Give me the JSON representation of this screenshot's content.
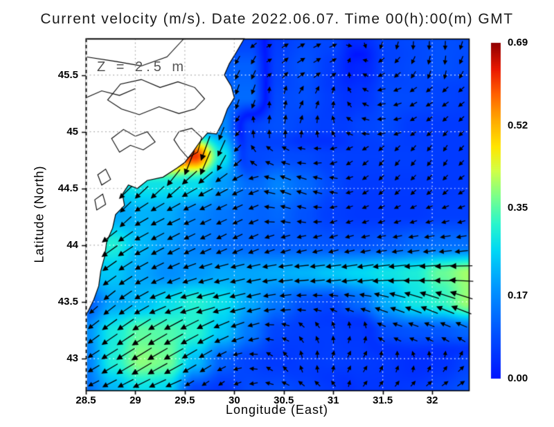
{
  "figure": {
    "title": "Current velocity (m/s). Date 2022.06.07. Time 00(h):00(m) GMT",
    "background": "#ffffff"
  },
  "chart_data": {
    "type": "heatmap",
    "overlay": "vector-field",
    "title": "Current velocity (m/s). Date 2022.06.07. Time 00(h):00(m) GMT",
    "depth_annotation": "Z  =  2.5  m",
    "xlabel": "Longitude (East)",
    "ylabel": "Latitude (North)",
    "units": "m/s",
    "xlim": [
      28.5,
      32.37
    ],
    "ylim": [
      42.72,
      45.82
    ],
    "xticks": [
      28.5,
      29,
      29.5,
      30,
      30.5,
      31,
      31.5,
      32
    ],
    "xtick_labels": [
      "28.5",
      "29",
      "29.5",
      "30",
      "30.5",
      "31",
      "31.5",
      "32"
    ],
    "yticks": [
      45.5,
      45,
      44.5,
      44,
      43.5,
      43
    ],
    "ytick_labels": [
      "45.5",
      "45",
      "44.5",
      "44",
      "43.5",
      "43"
    ],
    "grid": "dotted",
    "colors": {
      "land": "#ffffff",
      "coastline": "#000000",
      "arrows": "#000000",
      "grid_sea": "rgba(255,255,255,0.9)",
      "grid_land": "#a8a8a8",
      "frame": "#000000"
    },
    "colorbar": {
      "min": 0.0,
      "max": 0.69,
      "tick_values": [
        0.69,
        0.52,
        0.35,
        0.17,
        0.0
      ],
      "tick_labels": [
        "0.69",
        "0.52",
        "0.35",
        "0.17",
        "0.00"
      ],
      "stops": [
        [
          0.0,
          0,
          20,
          255
        ],
        [
          0.13,
          0,
          80,
          255
        ],
        [
          0.27,
          0,
          150,
          255
        ],
        [
          0.38,
          0,
          215,
          245
        ],
        [
          0.46,
          40,
          245,
          205
        ],
        [
          0.54,
          120,
          255,
          140
        ],
        [
          0.62,
          210,
          255,
          70
        ],
        [
          0.69,
          255,
          230,
          0
        ],
        [
          0.77,
          255,
          170,
          0
        ],
        [
          0.85,
          255,
          95,
          0
        ],
        [
          0.92,
          235,
          25,
          0
        ],
        [
          1.0,
          145,
          0,
          0
        ]
      ]
    },
    "field": {
      "units": "m/s",
      "lons": [
        28.5,
        28.78,
        29.05,
        29.33,
        29.6,
        29.88,
        30.15,
        30.43,
        30.7,
        30.98,
        31.25,
        31.53,
        31.8,
        32.08,
        32.37
      ],
      "lats": [
        45.82,
        45.56,
        45.3,
        45.04,
        44.79,
        44.53,
        44.27,
        44.01,
        43.75,
        43.49,
        43.24,
        42.98,
        42.72
      ],
      "uv": [
        [
          null,
          null,
          null,
          null,
          null,
          null,
          [
            -0.06,
            -0.04
          ],
          [
            0.05,
            0.03
          ],
          [
            0.07,
            0.04
          ],
          [
            0.07,
            0.03
          ],
          [
            0.02,
            -0.03
          ],
          [
            -0.02,
            -0.07
          ],
          [
            0.0,
            -0.08
          ],
          [
            0.0,
            -0.09
          ],
          [
            -0.03,
            -0.08
          ]
        ],
        [
          null,
          null,
          null,
          null,
          null,
          null,
          [
            -0.05,
            -0.1
          ],
          [
            0.05,
            0.05
          ],
          [
            0.08,
            0.05
          ],
          [
            0.05,
            0.03
          ],
          [
            -0.02,
            0.02
          ],
          [
            -0.06,
            -0.04
          ],
          [
            -0.04,
            -0.07
          ],
          [
            -0.01,
            -0.09
          ],
          [
            -0.04,
            -0.07
          ]
        ],
        [
          null,
          null,
          null,
          null,
          null,
          null,
          [
            -0.04,
            -0.12
          ],
          [
            0.01,
            0.08
          ],
          [
            0.04,
            0.08
          ],
          [
            0.01,
            0.06
          ],
          [
            -0.04,
            0.03
          ],
          [
            -0.08,
            -0.02
          ],
          [
            -0.07,
            -0.04
          ],
          [
            -0.06,
            -0.04
          ],
          [
            -0.05,
            -0.04
          ]
        ],
        [
          null,
          null,
          null,
          null,
          null,
          [
            -0.06,
            -0.16
          ],
          [
            0.0,
            0.07
          ],
          [
            0.01,
            0.09
          ],
          [
            0.02,
            0.07
          ],
          [
            -0.02,
            0.06
          ],
          [
            -0.07,
            0.02
          ],
          [
            -0.08,
            -0.01
          ],
          [
            -0.05,
            -0.03
          ],
          [
            -0.04,
            -0.04
          ],
          [
            -0.04,
            -0.04
          ]
        ],
        [
          null,
          null,
          null,
          null,
          [
            -0.2,
            -0.58
          ],
          [
            -0.12,
            -0.26
          ],
          [
            -0.05,
            0.06
          ],
          [
            -0.08,
            0.03
          ],
          [
            -0.08,
            0.0
          ],
          [
            -0.06,
            -0.03
          ],
          [
            -0.05,
            -0.04
          ],
          [
            -0.04,
            -0.05
          ],
          [
            -0.04,
            -0.05
          ],
          [
            -0.03,
            -0.05
          ],
          [
            -0.04,
            -0.04
          ]
        ],
        [
          null,
          null,
          null,
          [
            -0.2,
            -0.2
          ],
          [
            -0.24,
            -0.13
          ],
          [
            -0.17,
            -0.09
          ],
          [
            -0.12,
            -0.05
          ],
          [
            -0.15,
            0.06
          ],
          [
            -0.12,
            0.04
          ],
          [
            -0.08,
            0.02
          ],
          [
            -0.05,
            -0.03
          ],
          [
            -0.04,
            -0.04
          ],
          [
            -0.04,
            -0.04
          ],
          [
            -0.04,
            -0.04
          ],
          [
            -0.05,
            -0.03
          ]
        ],
        [
          null,
          [
            -0.12,
            -0.17
          ],
          [
            -0.19,
            -0.11
          ],
          [
            -0.19,
            -0.09
          ],
          [
            -0.15,
            -0.07
          ],
          [
            -0.13,
            -0.06
          ],
          [
            -0.11,
            -0.05
          ],
          [
            -0.12,
            0.03
          ],
          [
            -0.09,
            0.02
          ],
          [
            -0.06,
            -0.02
          ],
          [
            -0.05,
            -0.02
          ],
          [
            -0.05,
            -0.02
          ],
          [
            -0.05,
            -0.02
          ],
          [
            -0.06,
            -0.02
          ],
          [
            -0.06,
            -0.02
          ]
        ],
        [
          null,
          [
            -0.25,
            -0.18
          ],
          [
            -0.2,
            -0.11
          ],
          [
            -0.17,
            -0.09
          ],
          [
            -0.14,
            -0.07
          ],
          [
            -0.12,
            -0.06
          ],
          [
            -0.11,
            -0.05
          ],
          [
            -0.1,
            -0.04
          ],
          [
            -0.1,
            -0.03
          ],
          [
            -0.09,
            -0.03
          ],
          [
            -0.09,
            -0.02
          ],
          [
            -0.1,
            -0.02
          ],
          [
            -0.12,
            -0.02
          ],
          [
            -0.13,
            -0.02
          ],
          [
            -0.13,
            -0.02
          ]
        ],
        [
          null,
          [
            -0.2,
            -0.14
          ],
          [
            -0.18,
            -0.1
          ],
          [
            -0.16,
            -0.07
          ],
          [
            -0.18,
            -0.06
          ],
          [
            -0.2,
            -0.05
          ],
          [
            -0.2,
            -0.04
          ],
          [
            -0.21,
            -0.03
          ],
          [
            -0.22,
            -0.02
          ],
          [
            -0.24,
            -0.03
          ],
          [
            -0.26,
            -0.04
          ],
          [
            -0.28,
            -0.03
          ],
          [
            -0.3,
            -0.02
          ],
          [
            -0.36,
            -0.02
          ],
          [
            -0.4,
            0.0
          ]
        ],
        [
          [
            -0.07,
            -0.07
          ],
          [
            -0.16,
            -0.13
          ],
          [
            -0.2,
            -0.11
          ],
          [
            -0.26,
            -0.09
          ],
          [
            -0.3,
            -0.08
          ],
          [
            -0.27,
            -0.07
          ],
          [
            -0.2,
            -0.05
          ],
          [
            -0.14,
            -0.02
          ],
          [
            -0.09,
            0.0
          ],
          [
            -0.07,
            0.02
          ],
          [
            -0.12,
            0.03
          ],
          [
            -0.2,
            0.07
          ],
          [
            -0.27,
            0.1
          ],
          [
            -0.3,
            0.12
          ],
          [
            -0.37,
            0.14
          ]
        ],
        [
          [
            -0.14,
            -0.11
          ],
          [
            -0.24,
            -0.17
          ],
          [
            -0.3,
            -0.19
          ],
          [
            -0.3,
            -0.17
          ],
          [
            -0.28,
            -0.15
          ],
          [
            -0.22,
            -0.1
          ],
          [
            -0.14,
            -0.04
          ],
          [
            -0.07,
            0.02
          ],
          [
            -0.04,
            0.05
          ],
          [
            -0.01,
            0.06
          ],
          [
            0.02,
            0.05
          ],
          [
            -0.08,
            0.03
          ],
          [
            -0.09,
            0.03
          ],
          [
            -0.09,
            0.04
          ],
          [
            -0.11,
            0.05
          ]
        ],
        [
          [
            -0.13,
            -0.08
          ],
          [
            -0.26,
            -0.16
          ],
          [
            -0.33,
            -0.2
          ],
          [
            -0.32,
            -0.18
          ],
          [
            -0.2,
            -0.12
          ],
          [
            -0.1,
            -0.05
          ],
          [
            -0.07,
            0.01
          ],
          [
            -0.04,
            0.04
          ],
          [
            -0.01,
            0.06
          ],
          [
            0.02,
            0.06
          ],
          [
            0.03,
            0.05
          ],
          [
            0.02,
            0.05
          ],
          [
            0.0,
            0.04
          ],
          [
            0.02,
            0.04
          ],
          [
            0.05,
            0.05
          ]
        ],
        [
          [
            -0.12,
            -0.06
          ],
          [
            -0.2,
            -0.1
          ],
          [
            -0.25,
            -0.12
          ],
          [
            -0.24,
            -0.1
          ],
          [
            -0.06,
            -0.04
          ],
          [
            -0.04,
            -0.03
          ],
          [
            -0.08,
            -0.02
          ],
          [
            -0.08,
            0.03
          ],
          [
            -0.06,
            0.04
          ],
          [
            -0.04,
            0.04
          ],
          [
            0.03,
            0.04
          ],
          [
            0.03,
            0.04
          ],
          [
            0.04,
            0.04
          ],
          [
            0.06,
            0.04
          ],
          [
            0.08,
            0.05
          ]
        ]
      ]
    },
    "coastline": [
      [
        30.1,
        45.82
      ],
      [
        30.02,
        45.7
      ],
      [
        29.95,
        45.6
      ],
      [
        29.9,
        45.5
      ],
      [
        29.97,
        45.4
      ],
      [
        30.0,
        45.3
      ],
      [
        29.93,
        45.2
      ],
      [
        29.88,
        45.08
      ],
      [
        29.82,
        44.98
      ],
      [
        29.73,
        44.99
      ],
      [
        29.66,
        44.92
      ],
      [
        29.58,
        44.82
      ],
      [
        29.5,
        44.73
      ],
      [
        29.42,
        44.68
      ],
      [
        29.28,
        44.6
      ],
      [
        29.12,
        44.57
      ],
      [
        29.02,
        44.5
      ],
      [
        28.93,
        44.53
      ],
      [
        28.87,
        44.45
      ],
      [
        28.89,
        44.35
      ],
      [
        28.8,
        44.27
      ],
      [
        28.77,
        44.15
      ],
      [
        28.71,
        44.03
      ],
      [
        28.69,
        43.9
      ],
      [
        28.65,
        43.77
      ],
      [
        28.63,
        43.64
      ],
      [
        28.58,
        43.52
      ],
      [
        28.53,
        43.43
      ],
      [
        28.5,
        43.38
      ],
      [
        28.5,
        45.82
      ]
    ],
    "lakes": [
      [
        [
          28.72,
          45.28
        ],
        [
          28.85,
          45.42
        ],
        [
          29.06,
          45.46
        ],
        [
          29.25,
          45.39
        ],
        [
          29.43,
          45.44
        ],
        [
          29.6,
          45.39
        ],
        [
          29.7,
          45.29
        ],
        [
          29.6,
          45.2
        ],
        [
          29.44,
          45.16
        ],
        [
          29.24,
          45.22
        ],
        [
          29.04,
          45.15
        ],
        [
          28.86,
          45.2
        ]
      ],
      [
        [
          28.76,
          44.94
        ],
        [
          28.88,
          45.02
        ],
        [
          29.0,
          44.96
        ],
        [
          29.12,
          45.0
        ],
        [
          29.2,
          44.91
        ],
        [
          29.08,
          44.84
        ],
        [
          28.95,
          44.88
        ],
        [
          28.84,
          44.82
        ]
      ],
      [
        [
          29.44,
          45.0
        ],
        [
          29.57,
          45.03
        ],
        [
          29.67,
          44.95
        ],
        [
          29.63,
          44.82
        ],
        [
          29.53,
          44.77
        ],
        [
          29.45,
          44.85
        ],
        [
          29.39,
          44.93
        ]
      ],
      [
        [
          28.62,
          44.62
        ],
        [
          28.7,
          44.67
        ],
        [
          28.75,
          44.58
        ],
        [
          28.66,
          44.53
        ]
      ],
      [
        [
          28.59,
          44.4
        ],
        [
          28.67,
          44.45
        ],
        [
          28.7,
          44.36
        ],
        [
          28.61,
          44.31
        ]
      ]
    ],
    "rivers": [
      [
        [
          28.5,
          45.3
        ],
        [
          28.66,
          45.36
        ],
        [
          28.84,
          45.32
        ],
        [
          29.0,
          45.38
        ]
      ],
      [
        [
          29.49,
          45.82
        ],
        [
          29.32,
          45.66
        ],
        [
          29.06,
          45.58
        ],
        [
          28.8,
          45.62
        ],
        [
          28.5,
          45.66
        ]
      ]
    ]
  }
}
